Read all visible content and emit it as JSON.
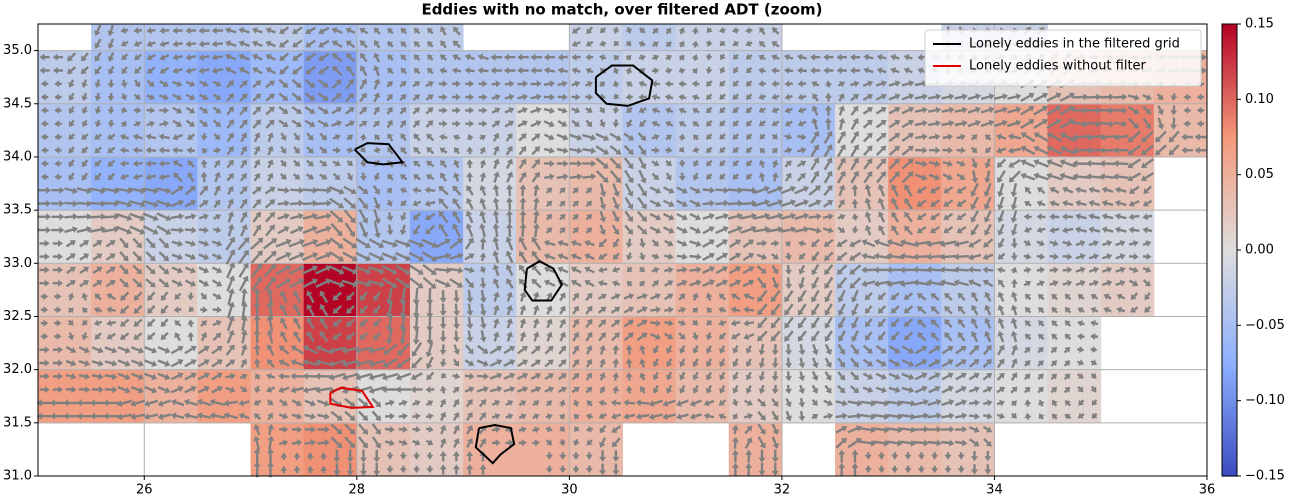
{
  "chart_data": {
    "type": "heatmap",
    "title": "Eddies with no match, over filtered ADT (zoom)",
    "xlim": [
      25,
      36
    ],
    "ylim": [
      31,
      35.25
    ],
    "xticks": [
      26,
      28,
      30,
      32,
      34,
      36
    ],
    "yticks": [
      {
        "value": 31,
        "label": "31.0"
      },
      31.5,
      {
        "value": 32,
        "label": "32.0"
      },
      32.5,
      {
        "value": 33,
        "label": "33.0"
      },
      33.5,
      {
        "value": 34,
        "label": "34.0"
      },
      34.5,
      {
        "value": 35,
        "label": "35.0"
      }
    ],
    "grid": true,
    "clim": [
      -0.15,
      0.15
    ],
    "colorbar_ticks": [
      0.15,
      {
        "value": 0.1,
        "label": "0.10"
      },
      0.05,
      {
        "value": 0,
        "label": "0.00"
      },
      {
        "value": -0.05,
        "label": "−0.05"
      },
      {
        "value": -0.1,
        "label": "−0.10"
      },
      {
        "value": -0.15,
        "label": "−0.15"
      }
    ],
    "x_bins": [
      25,
      25.5,
      26,
      26.5,
      27,
      27.5,
      28,
      28.5,
      29,
      29.5,
      30,
      30.5,
      31,
      31.5,
      32,
      32.5,
      33,
      33.5,
      34,
      34.5,
      35,
      35.5,
      36
    ],
    "y_bins": [
      31,
      31.5,
      32,
      32.5,
      33,
      33.5,
      34,
      34.5,
      35,
      35.25
    ],
    "z": [
      [
        null,
        null,
        null,
        null,
        0.07,
        0.08,
        0.03,
        0.02,
        0.05,
        0.05,
        0.04,
        null,
        null,
        0.05,
        null,
        0.05,
        0.04,
        0.03,
        null,
        null,
        null,
        null
      ],
      [
        0.07,
        0.07,
        0.05,
        0.07,
        0.05,
        0.03,
        0.0,
        0.01,
        0.03,
        0.04,
        0.05,
        0.06,
        0.04,
        0.02,
        0.0,
        -0.02,
        -0.03,
        -0.01,
        0.0,
        0.01,
        null,
        null
      ],
      [
        0.04,
        0.02,
        0.0,
        0.03,
        0.08,
        0.12,
        0.1,
        0.02,
        -0.02,
        0.01,
        0.04,
        0.07,
        0.05,
        0.03,
        -0.01,
        -0.05,
        -0.08,
        -0.05,
        -0.01,
        0.0,
        null,
        null
      ],
      [
        0.03,
        0.05,
        0.02,
        0.0,
        0.1,
        0.15,
        0.12,
        0.02,
        -0.03,
        0.0,
        0.02,
        0.03,
        0.05,
        0.07,
        0.02,
        -0.03,
        -0.05,
        -0.03,
        0.0,
        0.01,
        0.02,
        null
      ],
      [
        0.0,
        0.02,
        -0.02,
        -0.03,
        0.02,
        0.05,
        -0.04,
        -0.08,
        -0.02,
        0.04,
        0.05,
        0.02,
        0.0,
        0.03,
        0.04,
        0.02,
        0.05,
        0.03,
        -0.01,
        -0.02,
        -0.01,
        null
      ],
      [
        -0.05,
        -0.07,
        -0.08,
        -0.04,
        -0.02,
        -0.03,
        -0.05,
        -0.04,
        -0.01,
        0.03,
        0.04,
        -0.02,
        -0.04,
        -0.05,
        -0.02,
        0.03,
        0.08,
        0.06,
        0.0,
        0.02,
        0.03,
        null
      ],
      [
        -0.04,
        -0.05,
        -0.04,
        -0.06,
        -0.03,
        -0.05,
        -0.04,
        -0.02,
        -0.02,
        0.0,
        -0.02,
        -0.04,
        -0.03,
        -0.04,
        -0.05,
        0.0,
        0.03,
        0.04,
        0.06,
        0.1,
        0.09,
        0.04
      ],
      [
        -0.03,
        -0.05,
        -0.07,
        -0.08,
        -0.06,
        -0.09,
        -0.05,
        -0.04,
        -0.04,
        -0.04,
        -0.03,
        -0.02,
        -0.02,
        -0.03,
        -0.03,
        -0.03,
        -0.02,
        -0.01,
        0.0,
        0.03,
        0.04,
        0.05
      ],
      [
        null,
        -0.04,
        -0.04,
        -0.04,
        -0.03,
        -0.05,
        -0.04,
        -0.03,
        null,
        null,
        -0.02,
        -0.03,
        -0.02,
        -0.02,
        null,
        null,
        null,
        -0.02,
        -0.02,
        null,
        null,
        null
      ]
    ],
    "series": [
      {
        "name": "Lonely eddies in the filtered grid",
        "color": "#000000",
        "contours": [
          {
            "x": [
              30.25,
              30.4,
              30.6,
              30.78,
              30.75,
              30.55,
              30.35,
              30.25,
              30.25
            ],
            "y": [
              34.75,
              34.86,
              34.86,
              34.72,
              34.55,
              34.48,
              34.5,
              34.6,
              34.75
            ]
          },
          {
            "x": [
              27.98,
              28.1,
              28.3,
              28.43,
              28.25,
              28.1,
              27.98
            ],
            "y": [
              34.07,
              34.13,
              34.12,
              33.95,
              33.93,
              33.95,
              34.07
            ]
          },
          {
            "x": [
              29.6,
              29.72,
              29.85,
              29.93,
              29.83,
              29.65,
              29.58,
              29.6
            ],
            "y": [
              32.95,
              33.02,
              32.95,
              32.8,
              32.65,
              32.65,
              32.75,
              32.95
            ]
          },
          {
            "x": [
              29.15,
              29.3,
              29.45,
              29.48,
              29.35,
              29.28,
              29.12,
              29.15
            ],
            "y": [
              31.45,
              31.48,
              31.45,
              31.3,
              31.2,
              31.12,
              31.27,
              31.45
            ]
          }
        ]
      },
      {
        "name": "Lonely eddies without filter",
        "color": "#e00000",
        "contours": [
          {
            "x": [
              27.75,
              27.85,
              28.05,
              28.15,
              27.95,
              27.75,
              27.75
            ],
            "y": [
              31.78,
              31.83,
              31.8,
              31.65,
              31.64,
              31.68,
              31.78
            ]
          }
        ]
      }
    ],
    "legend": "upper right"
  }
}
